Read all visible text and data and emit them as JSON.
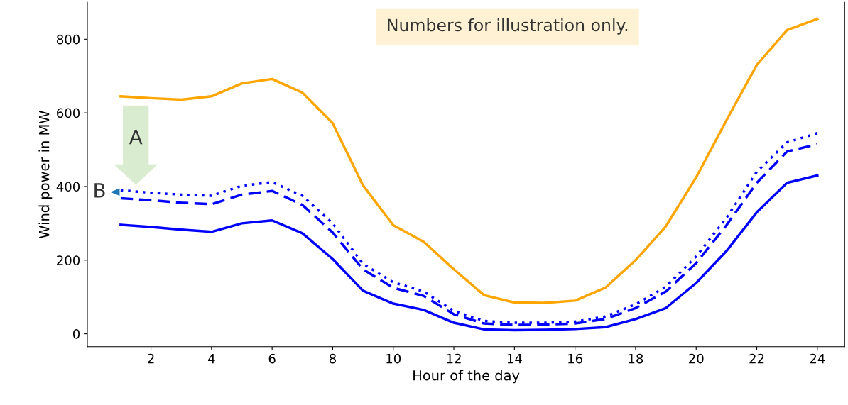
{
  "chart_data": {
    "type": "line",
    "xlabel": "Hour of the day",
    "ylabel": "Wind power in MW",
    "x": [
      1,
      2,
      3,
      4,
      5,
      6,
      7,
      8,
      9,
      10,
      11,
      12,
      13,
      14,
      15,
      16,
      17,
      18,
      19,
      20,
      21,
      22,
      23,
      24
    ],
    "series": [
      {
        "color": "#ffa500",
        "line_style": "solid",
        "values": [
          645,
          640,
          636,
          645,
          680,
          692,
          655,
          572,
          403,
          295,
          250,
          175,
          105,
          85,
          84,
          90,
          125,
          200,
          292,
          425,
          580,
          730,
          825,
          855
        ]
      },
      {
        "color": "#0000ff",
        "line_style": "solid",
        "values": [
          296,
          290,
          283,
          277,
          300,
          308,
          273,
          203,
          117,
          82,
          65,
          30,
          12,
          10,
          11,
          13,
          18,
          40,
          70,
          138,
          225,
          330,
          410,
          430
        ]
      },
      {
        "color": "#0000ff",
        "line_style": "dashed",
        "values": [
          368,
          363,
          356,
          352,
          378,
          388,
          350,
          275,
          175,
          125,
          103,
          53,
          28,
          24,
          25,
          28,
          40,
          70,
          115,
          192,
          295,
          410,
          495,
          515
        ]
      },
      {
        "color": "#0000ff",
        "line_style": "dotted",
        "values": [
          390,
          383,
          378,
          375,
          402,
          412,
          375,
          300,
          190,
          140,
          115,
          62,
          35,
          30,
          30,
          33,
          47,
          80,
          128,
          210,
          315,
          440,
          520,
          545
        ]
      }
    ],
    "xlim": [
      -0.1,
      24.9
    ],
    "ylim": [
      -35,
      900
    ],
    "xticks": [
      2,
      4,
      6,
      8,
      10,
      12,
      14,
      16,
      18,
      20,
      22,
      24
    ],
    "yticks": [
      0,
      200,
      400,
      600,
      800
    ],
    "grid": false,
    "legend": false,
    "marker": "none",
    "annotations": [
      "Numbers for illustration only.",
      "A",
      "B"
    ]
  }
}
